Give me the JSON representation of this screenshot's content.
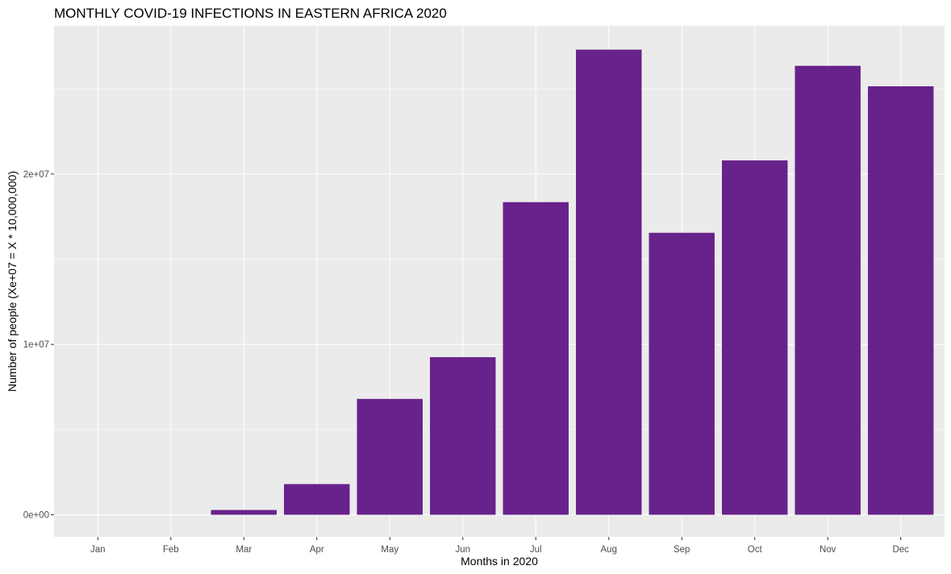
{
  "chart_data": {
    "type": "bar",
    "title": "MONTHLY COVID-19 INFECTIONS IN EASTERN AFRICA 2020",
    "xlabel": "Months in 2020",
    "ylabel": "Number of people (Xe+07 = X * 10,000,000)",
    "categories": [
      "Jan",
      "Feb",
      "Mar",
      "Apr",
      "May",
      "Jun",
      "Jul",
      "Aug",
      "Sep",
      "Oct",
      "Nov",
      "Dec"
    ],
    "values": [
      0,
      0,
      280000,
      1800000,
      6800000,
      9250000,
      18350000,
      27300000,
      16550000,
      20800000,
      26350000,
      25150000
    ],
    "ylim": [
      -1300000,
      28700000
    ],
    "yticks": [
      0,
      10000000,
      20000000
    ],
    "ytick_labels": [
      "0e+00",
      "1e+07",
      "2e+07"
    ],
    "grid": true,
    "bar_color": "#68228b",
    "panel_color": "#ebebeb",
    "grid_color": "#ffffff"
  }
}
